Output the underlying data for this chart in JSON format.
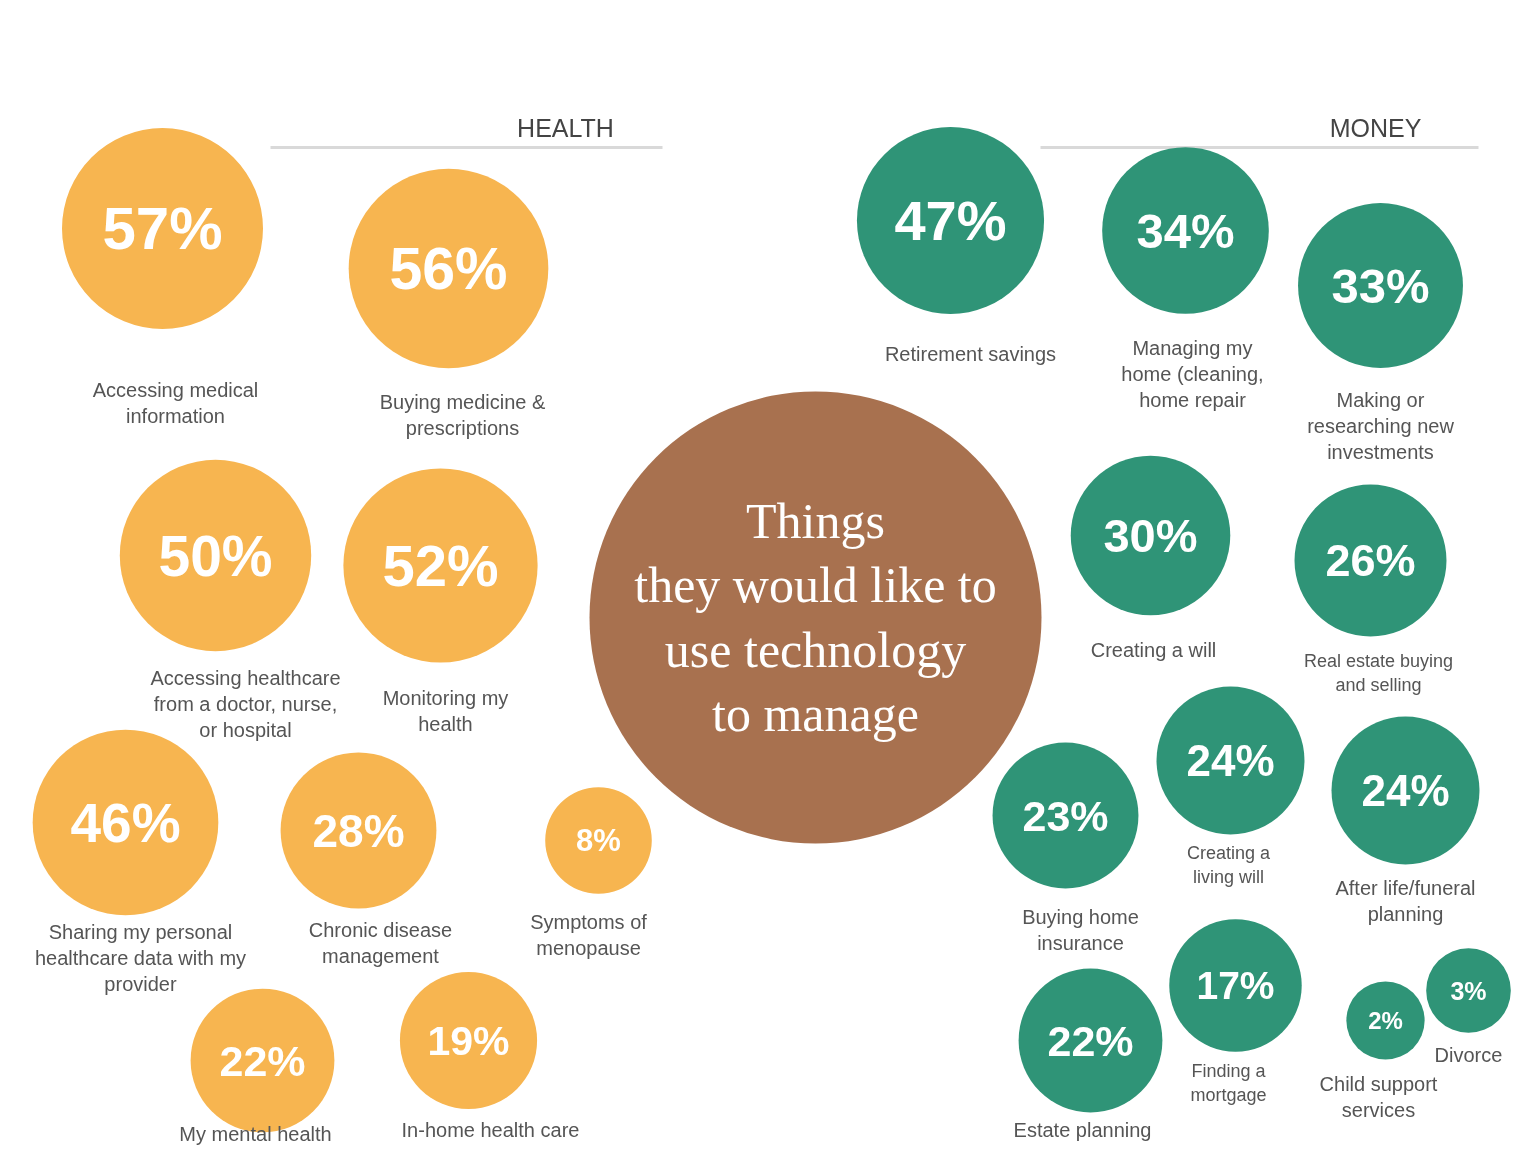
{
  "chart_data": {
    "type": "other",
    "title": "Things\nthey would like to\nuse technology\nto manage",
    "annotations": [
      "HEALTH",
      "MONEY"
    ],
    "categories": [
      "Accessing medical\ninformation",
      "Buying medicine &\nprescriptions",
      "Accessing healthcare\nfrom a doctor, nurse,\nor hospital",
      "Monitoring my\nhealth",
      "Sharing my personal\nhealthcare data with my\nprovider",
      "Chronic disease\nmanagement",
      "Symptoms of\nmenopause",
      "My mental health",
      "In-home health care",
      "Retirement savings",
      "Managing my\nhome (cleaning,\nhome repair",
      "Making or\nresearching new\ninvestments",
      "Creating a will",
      "Real estate buying\nand selling",
      "Creating a\nliving will",
      "After life/funeral\nplanning",
      "Buying home\ninsurance",
      "Estate planning",
      "Finding a\nmortgage",
      "Child support\nservices",
      "Divorce"
    ],
    "values": [
      57,
      56,
      50,
      52,
      46,
      28,
      8,
      22,
      19,
      47,
      34,
      33,
      30,
      26,
      24,
      24,
      23,
      22,
      17,
      2,
      3
    ],
    "value_labels": [
      "57%",
      "56%",
      "50%",
      "52%",
      "46%",
      "28%",
      "8%",
      "22%",
      "19%",
      "47%",
      "34%",
      "33%",
      "30%",
      "26%",
      "24%",
      "24%",
      "23%",
      "22%",
      "17%",
      "2%",
      "3%"
    ],
    "colors": [
      "#f7b550",
      "#f7b550",
      "#f7b550",
      "#f7b550",
      "#f7b550",
      "#f7b550",
      "#f7b550",
      "#f7b550",
      "#f7b550",
      "#2f9477",
      "#2f9477",
      "#2f9477",
      "#2f9477",
      "#2f9477",
      "#2f9477",
      "#2f9477",
      "#2f9477",
      "#2f9477",
      "#2f9477",
      "#2f9477",
      "#2f9477"
    ]
  }
}
